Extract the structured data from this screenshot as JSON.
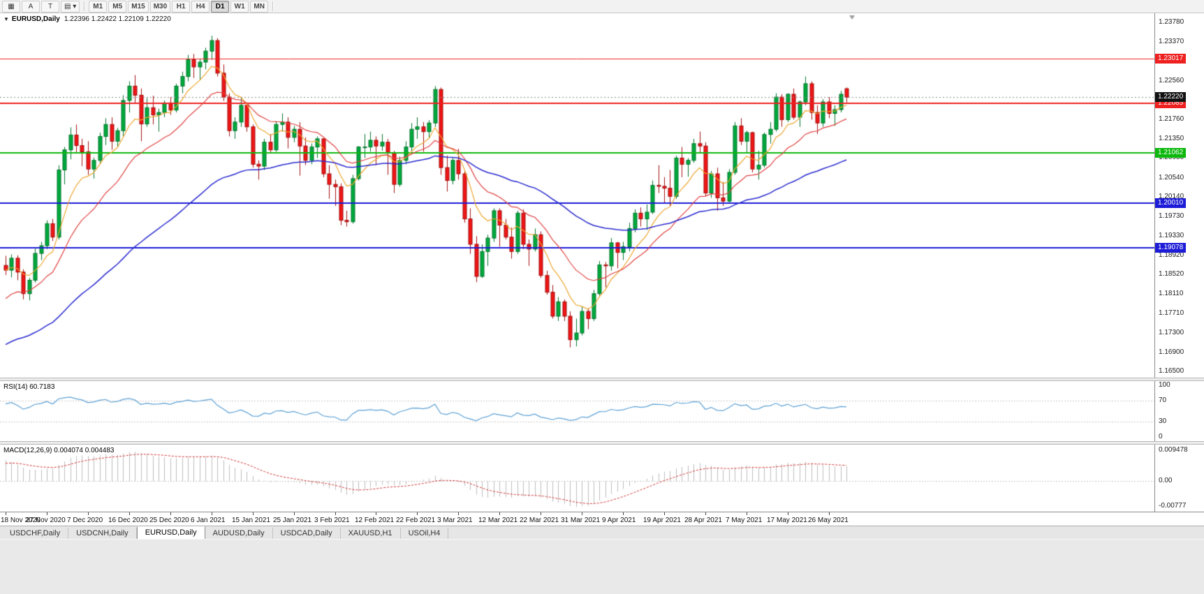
{
  "toolbar": {
    "tool_buttons": [
      {
        "name": "tile-windows-icon",
        "glyph": "▦"
      },
      {
        "name": "arrow-tool-button",
        "glyph": "A"
      },
      {
        "name": "text-tool-button",
        "glyph": "T"
      },
      {
        "name": "objects-list-dropdown",
        "glyph": "▤",
        "caret": "▾"
      }
    ],
    "timeframes": [
      "M1",
      "M5",
      "M15",
      "M30",
      "H1",
      "H4",
      "D1",
      "W1",
      "MN"
    ],
    "active_timeframe": "D1"
  },
  "main_chart": {
    "expander_glyph": "▼",
    "symbol_period": "EURUSD,Daily",
    "ohlc_text": "1.22396 1.22422 1.22109 1.22220"
  },
  "rsi_panel": {
    "title": "RSI(14)",
    "value": "60.7183",
    "axis_labels": [
      {
        "v": 100,
        "t": "100"
      },
      {
        "v": 70,
        "t": "70"
      },
      {
        "v": 30,
        "t": "30"
      },
      {
        "v": 0,
        "t": "0"
      }
    ]
  },
  "macd_panel": {
    "title": "MACD(12,26,9)",
    "values": "0.004074 0.004483",
    "axis_labels": [
      {
        "v": 0.009478,
        "t": "0.009478"
      },
      {
        "v": 0,
        "t": "0.00"
      },
      {
        "v": -0.00777,
        "t": "-0.00777"
      }
    ]
  },
  "date_axis": {
    "tick_every": 7,
    "labels": [
      "18 Nov 2020",
      "27 Nov 2020",
      "7 Dec 2020",
      "16 Dec 2020",
      "25 Dec 2020",
      "6 Jan 2021",
      "15 Jan 2021",
      "25 Jan 2021",
      "3 Feb 2021",
      "12 Feb 2021",
      "22 Feb 2021",
      "3 Mar 2021",
      "12 Mar 2021",
      "22 Mar 2021",
      "31 Mar 2021",
      "9 Apr 2021",
      "19 Apr 2021",
      "28 Apr 2021",
      "7 May 2021",
      "17 May 2021",
      "26 May 2021"
    ]
  },
  "bottom_tabs": {
    "active_index": 2,
    "items": [
      "USDCHF,Daily",
      "USDCNH,Daily",
      "EURUSD,Daily",
      "AUDUSD,Daily",
      "USDCAD,Daily",
      "XAUUSD,H1",
      "USOil,H4"
    ]
  },
  "chart_data": {
    "type": "candlestick",
    "symbol": "EURUSD",
    "period": "Daily",
    "price_axis": {
      "max": 1.2378,
      "min": 1.165,
      "tick_labels": [
        "1.23780",
        "1.23370",
        "1.22960",
        "1.22560",
        "1.22150",
        "1.21760",
        "1.21350",
        "1.20950",
        "1.20540",
        "1.20140",
        "1.19730",
        "1.19330",
        "1.18920",
        "1.18520",
        "1.18110",
        "1.17710",
        "1.17300",
        "1.16900",
        "1.16500"
      ]
    },
    "current_price": {
      "value": 1.2222,
      "label": "1.22220",
      "tag_bg": "#111111"
    },
    "horizontal_lines": [
      {
        "price": 1.23017,
        "label": "1.23017",
        "color": "#ef2020",
        "width": 1
      },
      {
        "price": 1.22085,
        "label": "1.22085",
        "color": "#ef2020",
        "width": 2
      },
      {
        "price": 1.21062,
        "label": "1.21062",
        "color": "#0db80d",
        "width": 2
      },
      {
        "price": 1.2001,
        "label": "1.20010",
        "color": "#1c1cd8",
        "width": 2
      },
      {
        "price": 1.19078,
        "label": "1.19078",
        "color": "#1c1cd8",
        "width": 2
      }
    ],
    "moving_averages": [
      {
        "name": "fast-ma",
        "period": 8,
        "seed": 1.1861,
        "color": "#eda52d",
        "width": 1.2
      },
      {
        "name": "mid-ma",
        "period": 18,
        "seed": 1.1795,
        "color": "#e04040",
        "width": 1.2
      },
      {
        "name": "slow-ma",
        "period": 55,
        "seed": 1.17,
        "color": "#2929cf",
        "width": 1.5
      }
    ],
    "candle_colors": {
      "up": "#00a93c",
      "up_border": "#02752c",
      "down": "#ef1515",
      "down_border": "#a30f0f"
    },
    "shift_marker_color": "#9e9e9e",
    "candles": [
      [
        1.1871,
        1.1891,
        1.1851,
        1.1861
      ],
      [
        1.1861,
        1.1894,
        1.1846,
        1.1886
      ],
      [
        1.1886,
        1.1892,
        1.184,
        1.1857
      ],
      [
        1.1857,
        1.1863,
        1.18,
        1.1812
      ],
      [
        1.1812,
        1.1845,
        1.1798,
        1.184
      ],
      [
        1.184,
        1.1906,
        1.1835,
        1.1896
      ],
      [
        1.1896,
        1.192,
        1.1882,
        1.1912
      ],
      [
        1.1912,
        1.1965,
        1.1905,
        1.1958
      ],
      [
        1.1958,
        1.1968,
        1.1922,
        1.193
      ],
      [
        1.193,
        1.208,
        1.1925,
        1.207
      ],
      [
        1.207,
        1.2118,
        1.204,
        1.2112
      ],
      [
        1.2112,
        1.2159,
        1.2092,
        1.2143
      ],
      [
        1.2143,
        1.2165,
        1.2105,
        1.2121
      ],
      [
        1.2121,
        1.2135,
        1.2078,
        1.2108
      ],
      [
        1.2108,
        1.213,
        1.206,
        1.2072
      ],
      [
        1.2072,
        1.2096,
        1.2052,
        1.209
      ],
      [
        1.209,
        1.2148,
        1.2082,
        1.214
      ],
      [
        1.214,
        1.2178,
        1.2122,
        1.2165
      ],
      [
        1.2165,
        1.218,
        1.2112,
        1.213
      ],
      [
        1.213,
        1.2158,
        1.2118,
        1.2152
      ],
      [
        1.2152,
        1.2226,
        1.214,
        1.2215
      ],
      [
        1.2215,
        1.2255,
        1.219,
        1.2245
      ],
      [
        1.2245,
        1.2268,
        1.221,
        1.2226
      ],
      [
        1.2226,
        1.224,
        1.213,
        1.2166
      ],
      [
        1.2166,
        1.222,
        1.216,
        1.22
      ],
      [
        1.22,
        1.2225,
        1.2165,
        1.2185
      ],
      [
        1.2185,
        1.2198,
        1.215,
        1.219
      ],
      [
        1.219,
        1.2215,
        1.218,
        1.221
      ],
      [
        1.221,
        1.2222,
        1.2185,
        1.2195
      ],
      [
        1.2195,
        1.225,
        1.219,
        1.2245
      ],
      [
        1.2245,
        1.2275,
        1.223,
        1.2265
      ],
      [
        1.2265,
        1.231,
        1.2255,
        1.23
      ],
      [
        1.23,
        1.2312,
        1.2262,
        1.2285
      ],
      [
        1.2285,
        1.2302,
        1.2258,
        1.2295
      ],
      [
        1.2295,
        1.2325,
        1.228,
        1.2318
      ],
      [
        1.2318,
        1.235,
        1.23,
        1.234
      ],
      [
        1.234,
        1.2345,
        1.2265,
        1.2272
      ],
      [
        1.2272,
        1.229,
        1.2214,
        1.2222
      ],
      [
        1.2222,
        1.223,
        1.214,
        1.2152
      ],
      [
        1.2152,
        1.218,
        1.2135,
        1.217
      ],
      [
        1.217,
        1.2222,
        1.216,
        1.2205
      ],
      [
        1.2205,
        1.221,
        1.215,
        1.216
      ],
      [
        1.216,
        1.2165,
        1.2075,
        1.2082
      ],
      [
        1.2082,
        1.209,
        1.205,
        1.2078
      ],
      [
        1.2078,
        1.2135,
        1.207,
        1.2128
      ],
      [
        1.2128,
        1.2145,
        1.2105,
        1.2112
      ],
      [
        1.2112,
        1.2172,
        1.2108,
        1.2165
      ],
      [
        1.2165,
        1.2188,
        1.215,
        1.217
      ],
      [
        1.217,
        1.218,
        1.2115,
        1.2138
      ],
      [
        1.2138,
        1.2162,
        1.2128,
        1.2155
      ],
      [
        1.2155,
        1.217,
        1.2058,
        1.212
      ],
      [
        1.212,
        1.2138,
        1.208,
        1.209
      ],
      [
        1.209,
        1.2125,
        1.2082,
        1.2118
      ],
      [
        1.2118,
        1.214,
        1.2095,
        1.2135
      ],
      [
        1.2135,
        1.2136,
        1.2055,
        1.2062
      ],
      [
        1.2062,
        1.208,
        1.201,
        1.204
      ],
      [
        1.204,
        1.205,
        1.1995,
        1.2035
      ],
      [
        1.2035,
        1.2042,
        1.1955,
        1.1965
      ],
      [
        1.1965,
        1.1985,
        1.1952,
        1.1962
      ],
      [
        1.1962,
        1.206,
        1.1958,
        1.2052
      ],
      [
        1.2052,
        1.212,
        1.2048,
        1.2118
      ],
      [
        1.2118,
        1.2145,
        1.2095,
        1.2118
      ],
      [
        1.2118,
        1.215,
        1.2108,
        1.2132
      ],
      [
        1.2132,
        1.214,
        1.208,
        1.212
      ],
      [
        1.212,
        1.2145,
        1.211,
        1.2128
      ],
      [
        1.2128,
        1.2135,
        1.206,
        1.2105
      ],
      [
        1.2105,
        1.211,
        1.2022,
        1.204
      ],
      [
        1.204,
        1.2098,
        1.2035,
        1.209
      ],
      [
        1.209,
        1.213,
        1.2082,
        1.2118
      ],
      [
        1.2118,
        1.2168,
        1.2108,
        1.2155
      ],
      [
        1.2155,
        1.218,
        1.2135,
        1.216
      ],
      [
        1.216,
        1.217,
        1.2108,
        1.215
      ],
      [
        1.215,
        1.2174,
        1.2135,
        1.2168
      ],
      [
        1.2168,
        1.2245,
        1.216,
        1.2238
      ],
      [
        1.2238,
        1.2242,
        1.206,
        1.2075
      ],
      [
        1.2075,
        1.21,
        1.2025,
        1.2048
      ],
      [
        1.2048,
        1.2095,
        1.204,
        1.209
      ],
      [
        1.209,
        1.2114,
        1.205,
        1.2062
      ],
      [
        1.2062,
        1.207,
        1.196,
        1.1968
      ],
      [
        1.1968,
        1.199,
        1.1895,
        1.1915
      ],
      [
        1.1915,
        1.1932,
        1.1836,
        1.1848
      ],
      [
        1.1848,
        1.1915,
        1.1845,
        1.19
      ],
      [
        1.19,
        1.1935,
        1.187,
        1.1928
      ],
      [
        1.1928,
        1.199,
        1.192,
        1.1985
      ],
      [
        1.1985,
        1.199,
        1.191,
        1.1955
      ],
      [
        1.1955,
        1.1968,
        1.1925,
        1.193
      ],
      [
        1.193,
        1.195,
        1.1885,
        1.19
      ],
      [
        1.19,
        1.1985,
        1.1895,
        1.198
      ],
      [
        1.198,
        1.1988,
        1.1905,
        1.1915
      ],
      [
        1.1915,
        1.1925,
        1.187,
        1.1905
      ],
      [
        1.1905,
        1.1948,
        1.19,
        1.1935
      ],
      [
        1.1935,
        1.1942,
        1.1845,
        1.185
      ],
      [
        1.185,
        1.186,
        1.181,
        1.1815
      ],
      [
        1.1815,
        1.183,
        1.176,
        1.1765
      ],
      [
        1.1765,
        1.1805,
        1.1755,
        1.1795
      ],
      [
        1.1795,
        1.18,
        1.1755,
        1.1765
      ],
      [
        1.1765,
        1.1775,
        1.17,
        1.1716
      ],
      [
        1.1716,
        1.176,
        1.1702,
        1.173
      ],
      [
        1.173,
        1.1785,
        1.1725,
        1.1775
      ],
      [
        1.1775,
        1.178,
        1.1738,
        1.176
      ],
      [
        1.176,
        1.182,
        1.1755,
        1.1812
      ],
      [
        1.1812,
        1.188,
        1.1808,
        1.1872
      ],
      [
        1.1872,
        1.1878,
        1.1825,
        1.187
      ],
      [
        1.187,
        1.1928,
        1.186,
        1.1918
      ],
      [
        1.1918,
        1.192,
        1.1865,
        1.1898
      ],
      [
        1.1898,
        1.192,
        1.1882,
        1.191
      ],
      [
        1.191,
        1.196,
        1.19,
        1.1948
      ],
      [
        1.1948,
        1.1988,
        1.194,
        1.198
      ],
      [
        1.198,
        1.1992,
        1.1952,
        1.1968
      ],
      [
        1.1968,
        1.1998,
        1.1945,
        1.1982
      ],
      [
        1.1982,
        1.2048,
        1.1978,
        1.2038
      ],
      [
        1.2038,
        1.208,
        1.2022,
        1.2036
      ],
      [
        1.2036,
        1.2055,
        1.2,
        1.2032
      ],
      [
        1.2032,
        1.207,
        1.1995,
        1.2015
      ],
      [
        1.2015,
        1.21,
        1.201,
        1.2095
      ],
      [
        1.2095,
        1.2118,
        1.2055,
        1.2082
      ],
      [
        1.2082,
        1.2095,
        1.2056,
        1.209
      ],
      [
        1.209,
        1.2135,
        1.2085,
        1.2125
      ],
      [
        1.2125,
        1.215,
        1.2105,
        1.212
      ],
      [
        1.212,
        1.2128,
        1.2015,
        1.2022
      ],
      [
        1.2022,
        1.2068,
        1.2012,
        1.2062
      ],
      [
        1.2062,
        1.2075,
        1.1985,
        1.2012
      ],
      [
        1.2012,
        1.2045,
        1.1995,
        1.2005
      ],
      [
        1.2005,
        1.2072,
        1.2,
        1.2065
      ],
      [
        1.2065,
        1.217,
        1.206,
        1.2162
      ],
      [
        1.2162,
        1.2178,
        1.2122,
        1.213
      ],
      [
        1.213,
        1.2152,
        1.2105,
        1.2148
      ],
      [
        1.2148,
        1.215,
        1.2065,
        1.2072
      ],
      [
        1.2072,
        1.211,
        1.205,
        1.208
      ],
      [
        1.208,
        1.2148,
        1.2075,
        1.2144
      ],
      [
        1.2144,
        1.217,
        1.2125,
        1.2155
      ],
      [
        1.2155,
        1.223,
        1.215,
        1.2222
      ],
      [
        1.2222,
        1.2228,
        1.216,
        1.2175
      ],
      [
        1.2175,
        1.223,
        1.217,
        1.2228
      ],
      [
        1.2228,
        1.224,
        1.2175,
        1.218
      ],
      [
        1.218,
        1.2215,
        1.216,
        1.2212
      ],
      [
        1.2212,
        1.2265,
        1.2205,
        1.225
      ],
      [
        1.225,
        1.2255,
        1.2175,
        1.219
      ],
      [
        1.219,
        1.2205,
        1.2145,
        1.2168
      ],
      [
        1.2168,
        1.2218,
        1.216,
        1.2212
      ],
      [
        1.2212,
        1.2222,
        1.2178,
        1.2188
      ],
      [
        1.2188,
        1.2205,
        1.2162,
        1.2196
      ],
      [
        1.2196,
        1.2235,
        1.219,
        1.2228
      ],
      [
        1.22396,
        1.22422,
        1.22109,
        1.2222
      ]
    ],
    "rsi": {
      "period": 14,
      "seed_gain": 0.0016,
      "seed_loss": 0.0009,
      "color": "#5a9fd4",
      "levels": [
        70,
        30
      ],
      "range": [
        0,
        100
      ]
    },
    "macd": {
      "ema_fast": 12,
      "ema_slow": 26,
      "signal_period": 9,
      "seed_fast": 1.1905,
      "seed_slow": 1.1832,
      "seed_signal": 0.0052,
      "range": [
        -0.00777,
        0.009478
      ],
      "histogram_color": "#bdbdbd",
      "signal_color": "#d32f2f"
    }
  }
}
